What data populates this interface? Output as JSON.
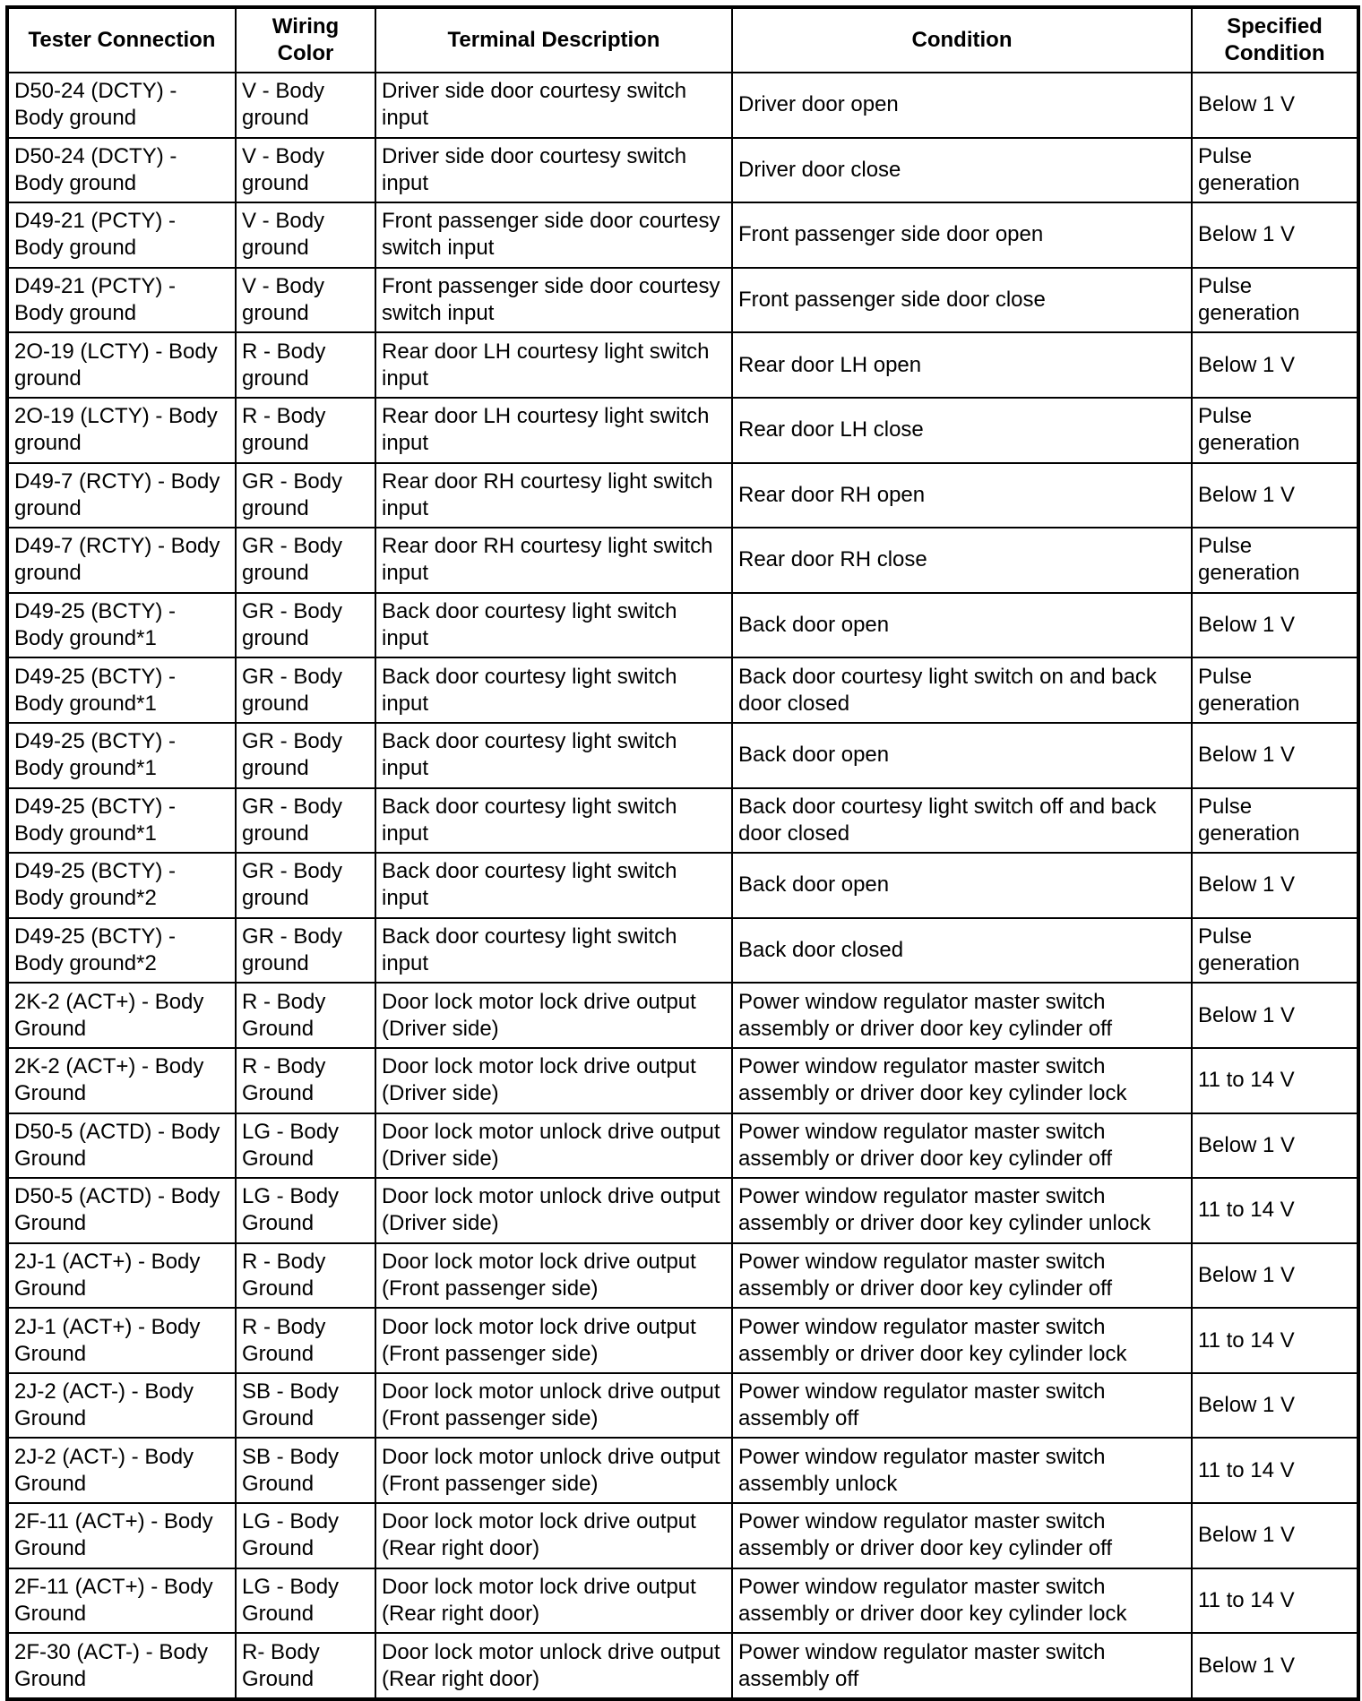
{
  "headers": [
    "Tester Connection",
    "Wiring Color",
    "Terminal Description",
    "Condition",
    "Specified Condition"
  ],
  "rows": [
    [
      "D50-24 (DCTY) - Body ground",
      "V - Body ground",
      "Driver side door courtesy switch input",
      "Driver door open",
      "Below 1 V"
    ],
    [
      "D50-24 (DCTY) - Body ground",
      "V - Body ground",
      "Driver side door courtesy switch input",
      "Driver door close",
      "Pulse generation"
    ],
    [
      "D49-21 (PCTY) - Body ground",
      "V - Body ground",
      "Front passenger side door courtesy switch input",
      "Front passenger side door open",
      "Below 1 V"
    ],
    [
      "D49-21 (PCTY) - Body ground",
      "V - Body ground",
      "Front passenger side door courtesy switch input",
      "Front passenger side door close",
      "Pulse generation"
    ],
    [
      "2O-19 (LCTY) - Body ground",
      "R - Body ground",
      "Rear door LH courtesy light switch input",
      "Rear door LH open",
      "Below 1 V"
    ],
    [
      "2O-19 (LCTY) - Body ground",
      "R - Body ground",
      "Rear door LH courtesy light switch input",
      "Rear door LH close",
      "Pulse generation"
    ],
    [
      "D49-7 (RCTY) - Body ground",
      "GR - Body ground",
      "Rear door RH courtesy light switch input",
      "Rear door RH open",
      "Below 1 V"
    ],
    [
      "D49-7 (RCTY) - Body ground",
      "GR - Body ground",
      "Rear door RH courtesy light switch input",
      "Rear door RH close",
      "Pulse generation"
    ],
    [
      "D49-25 (BCTY) - Body ground*1",
      "GR - Body ground",
      "Back door courtesy light switch input",
      "Back door open",
      "Below 1 V"
    ],
    [
      "D49-25 (BCTY) - Body ground*1",
      "GR - Body ground",
      "Back door courtesy light switch input",
      "Back door courtesy light switch on and back door closed",
      "Pulse generation"
    ],
    [
      "D49-25 (BCTY) - Body ground*1",
      "GR - Body ground",
      "Back door courtesy light switch input",
      "Back door open",
      "Below 1 V"
    ],
    [
      "D49-25 (BCTY) - Body ground*1",
      "GR - Body ground",
      "Back door courtesy light switch input",
      "Back door courtesy light switch off and back door closed",
      "Pulse generation"
    ],
    [
      "D49-25 (BCTY) - Body ground*2",
      "GR - Body ground",
      "Back door courtesy light switch input",
      "Back door open",
      "Below 1 V"
    ],
    [
      "D49-25 (BCTY) - Body ground*2",
      "GR - Body ground",
      "Back door courtesy light switch input",
      "Back door closed",
      "Pulse generation"
    ],
    [
      "2K-2 (ACT+) - Body Ground",
      "R - Body Ground",
      "Door lock motor lock drive output (Driver side)",
      "Power window regulator master switch assembly or driver door key cylinder off",
      "Below 1 V"
    ],
    [
      "2K-2 (ACT+) - Body Ground",
      "R - Body Ground",
      "Door lock motor lock drive output (Driver side)",
      "Power window regulator master switch assembly or driver door key cylinder lock",
      "11 to 14 V"
    ],
    [
      "D50-5 (ACTD) - Body Ground",
      "LG - Body Ground",
      "Door lock motor unlock drive output (Driver side)",
      "Power window regulator master switch assembly or driver door key cylinder off",
      "Below 1 V"
    ],
    [
      "D50-5 (ACTD) - Body Ground",
      "LG - Body Ground",
      "Door lock motor unlock drive output (Driver side)",
      "Power window regulator master switch assembly or driver door key cylinder unlock",
      "11 to 14 V"
    ],
    [
      "2J-1 (ACT+) - Body Ground",
      "R - Body Ground",
      "Door lock motor lock drive output (Front passenger side)",
      "Power window regulator master switch assembly or driver door key cylinder off",
      "Below 1 V"
    ],
    [
      "2J-1 (ACT+) - Body Ground",
      "R - Body Ground",
      "Door lock motor lock drive output (Front passenger side)",
      "Power window regulator master switch assembly or driver door key cylinder lock",
      "11 to 14 V"
    ],
    [
      "2J-2 (ACT-) - Body Ground",
      "SB - Body Ground",
      "Door lock motor unlock drive output (Front passenger side)",
      "Power window regulator master switch assembly off",
      "Below 1 V"
    ],
    [
      "2J-2 (ACT-) - Body Ground",
      "SB - Body Ground",
      "Door lock motor unlock drive output (Front passenger side)",
      "Power window regulator master switch assembly unlock",
      "11 to 14 V"
    ],
    [
      "2F-11 (ACT+) - Body Ground",
      "LG - Body Ground",
      "Door lock motor lock drive output (Rear right door)",
      "Power window regulator master switch assembly or driver door key cylinder off",
      "Below 1 V"
    ],
    [
      "2F-11 (ACT+) - Body Ground",
      "LG - Body Ground",
      "Door lock motor lock drive output (Rear right door)",
      "Power window regulator master switch assembly or driver door key cylinder lock",
      "11 to 14 V"
    ],
    [
      "2F-30 (ACT-) - Body Ground",
      "R- Body Ground",
      "Door lock motor unlock drive output (Rear right door)",
      "Power window regulator master switch assembly off",
      "Below 1 V"
    ]
  ]
}
